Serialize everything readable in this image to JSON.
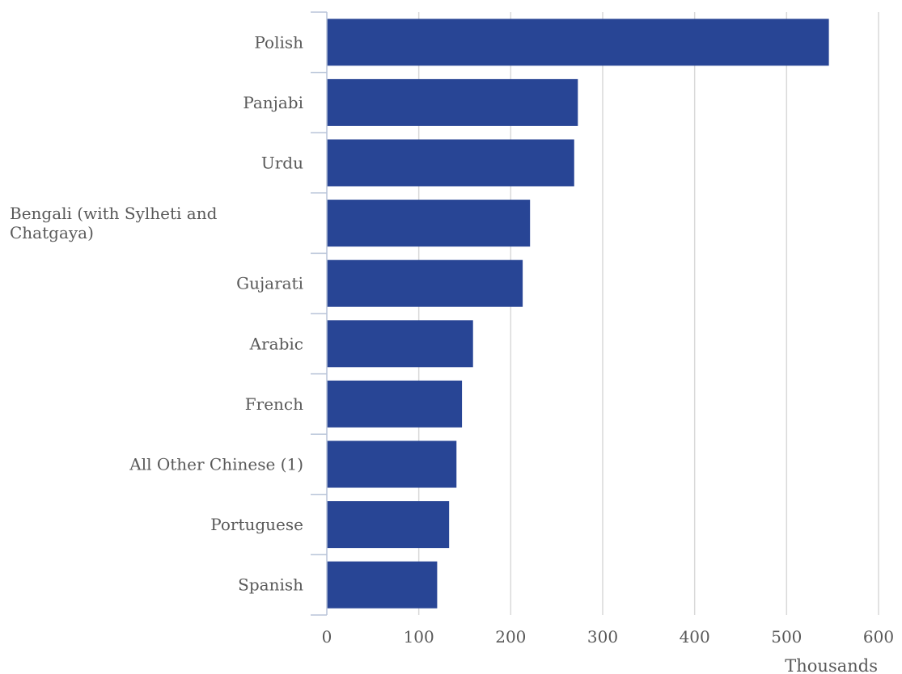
{
  "chart_data": {
    "type": "bar",
    "orientation": "horizontal",
    "categories": [
      "Polish",
      "Panjabi",
      "Urdu",
      "Bengali (with Sylheti and Chatgaya)",
      "Gujarati",
      "Arabic",
      "French",
      "All Other Chinese (1)",
      "Portuguese",
      "Spanish"
    ],
    "values": [
      546,
      273,
      269,
      221,
      213,
      159,
      147,
      141,
      133,
      120
    ],
    "xlabel": "Thousands",
    "ylabel": "",
    "xlim": [
      0,
      600
    ],
    "xticks": [
      "0",
      "100",
      "200",
      "300",
      "400",
      "500",
      "600"
    ],
    "grid": true,
    "legend": "none",
    "colors": {
      "bar": "#284595",
      "grid": "#d9d9d9",
      "axis": "#b8c4d8",
      "text": "#595959"
    }
  }
}
